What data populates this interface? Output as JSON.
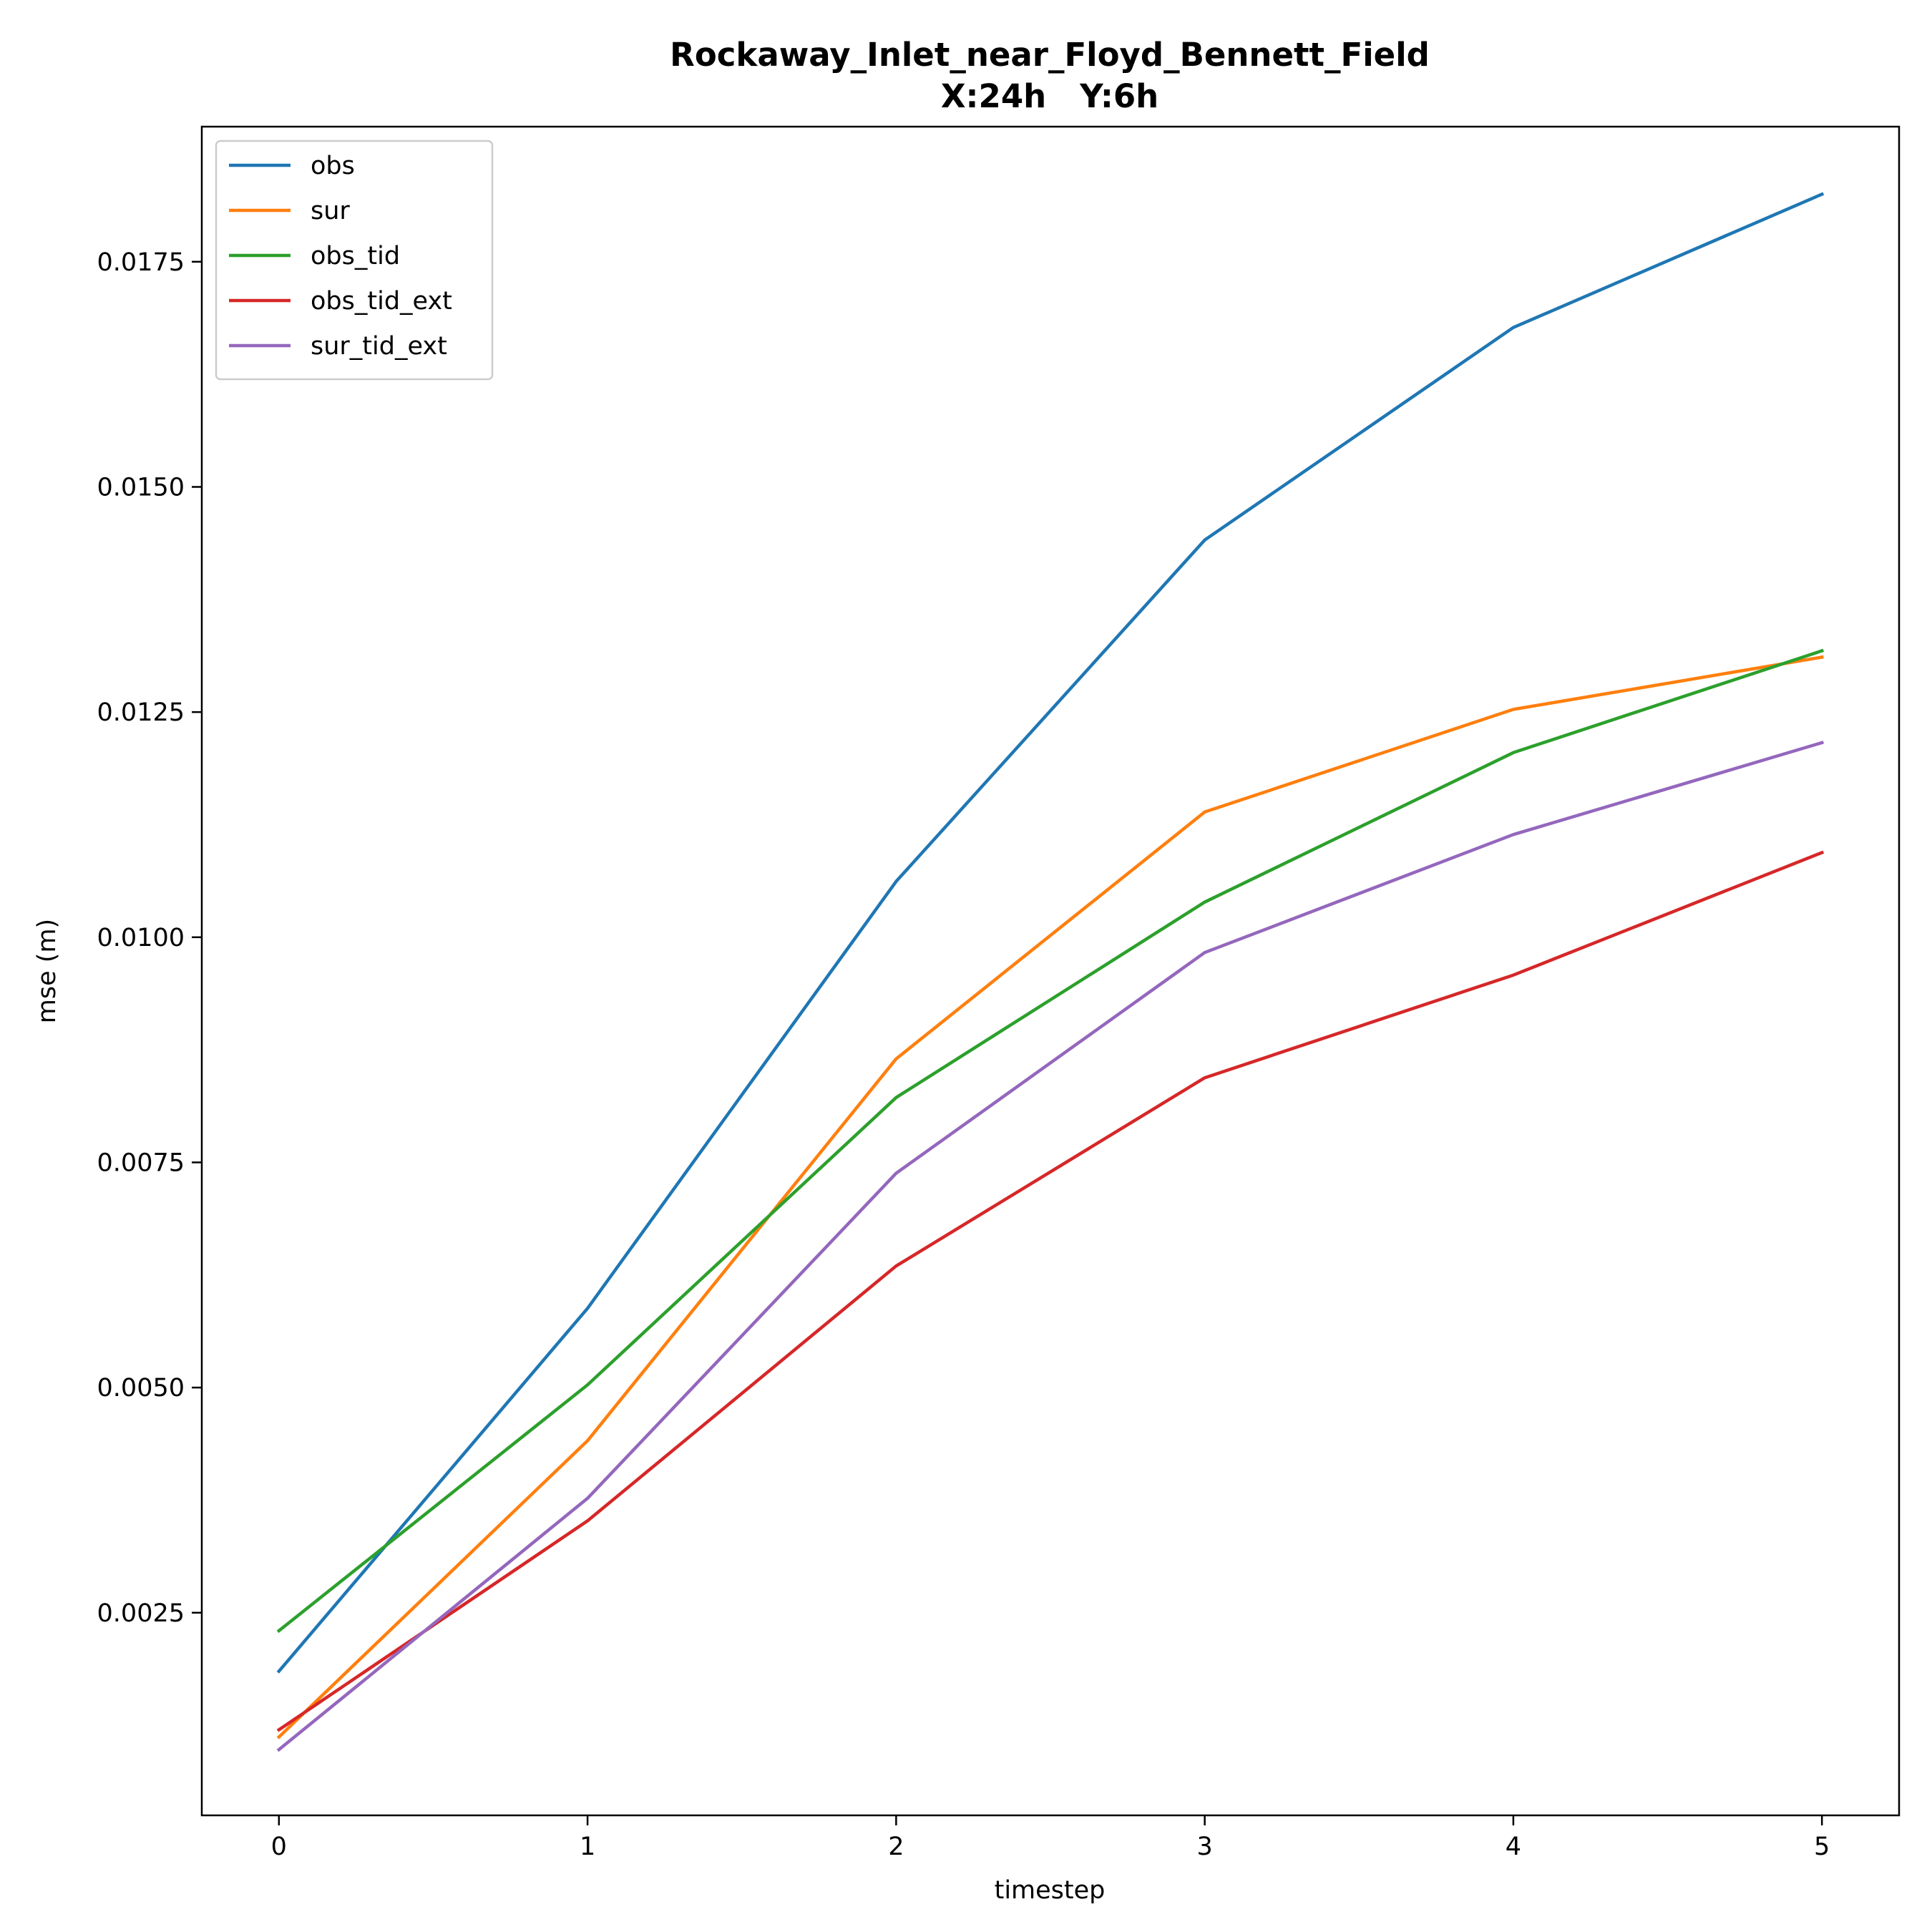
{
  "chart_data": {
    "type": "line",
    "title_line1": "Rockaway_Inlet_near_Floyd_Bennett_Field",
    "title_line2": "X:24h   Y:6h",
    "xlabel": "timestep",
    "ylabel": "mse (m)",
    "x": [
      0,
      1,
      2,
      3,
      4,
      5
    ],
    "xlim": [
      -0.25,
      5.25
    ],
    "ylim": [
      0.00025,
      0.019
    ],
    "xticks": [
      0,
      1,
      2,
      3,
      4,
      5
    ],
    "xtick_labels": [
      "0",
      "1",
      "2",
      "3",
      "4",
      "5"
    ],
    "yticks": [
      0.0025,
      0.005,
      0.0075,
      0.01,
      0.0125,
      0.015,
      0.0175
    ],
    "ytick_labels": [
      "0.0025",
      "0.0050",
      "0.0075",
      "0.0100",
      "0.0125",
      "0.0150",
      "0.0175"
    ],
    "grid": false,
    "legend_position": "upper-left",
    "series": [
      {
        "name": "obs",
        "color": "#1f77b4",
        "values": [
          0.00185,
          0.00588,
          0.01062,
          0.01441,
          0.01677,
          0.01825
        ]
      },
      {
        "name": "sur",
        "color": "#ff7f0e",
        "values": [
          0.00112,
          0.00441,
          0.00865,
          0.01139,
          0.01253,
          0.01311
        ]
      },
      {
        "name": "obs_tid",
        "color": "#2ca02c",
        "values": [
          0.0023,
          0.00503,
          0.00822,
          0.01039,
          0.01205,
          0.01318
        ]
      },
      {
        "name": "obs_tid_ext",
        "color": "#d62728",
        "values": [
          0.0012,
          0.00352,
          0.00635,
          0.00844,
          0.00958,
          0.01094
        ]
      },
      {
        "name": "sur_tid_ext",
        "color": "#9467bd",
        "values": [
          0.00098,
          0.00377,
          0.00738,
          0.00983,
          0.01114,
          0.01216
        ]
      }
    ]
  }
}
